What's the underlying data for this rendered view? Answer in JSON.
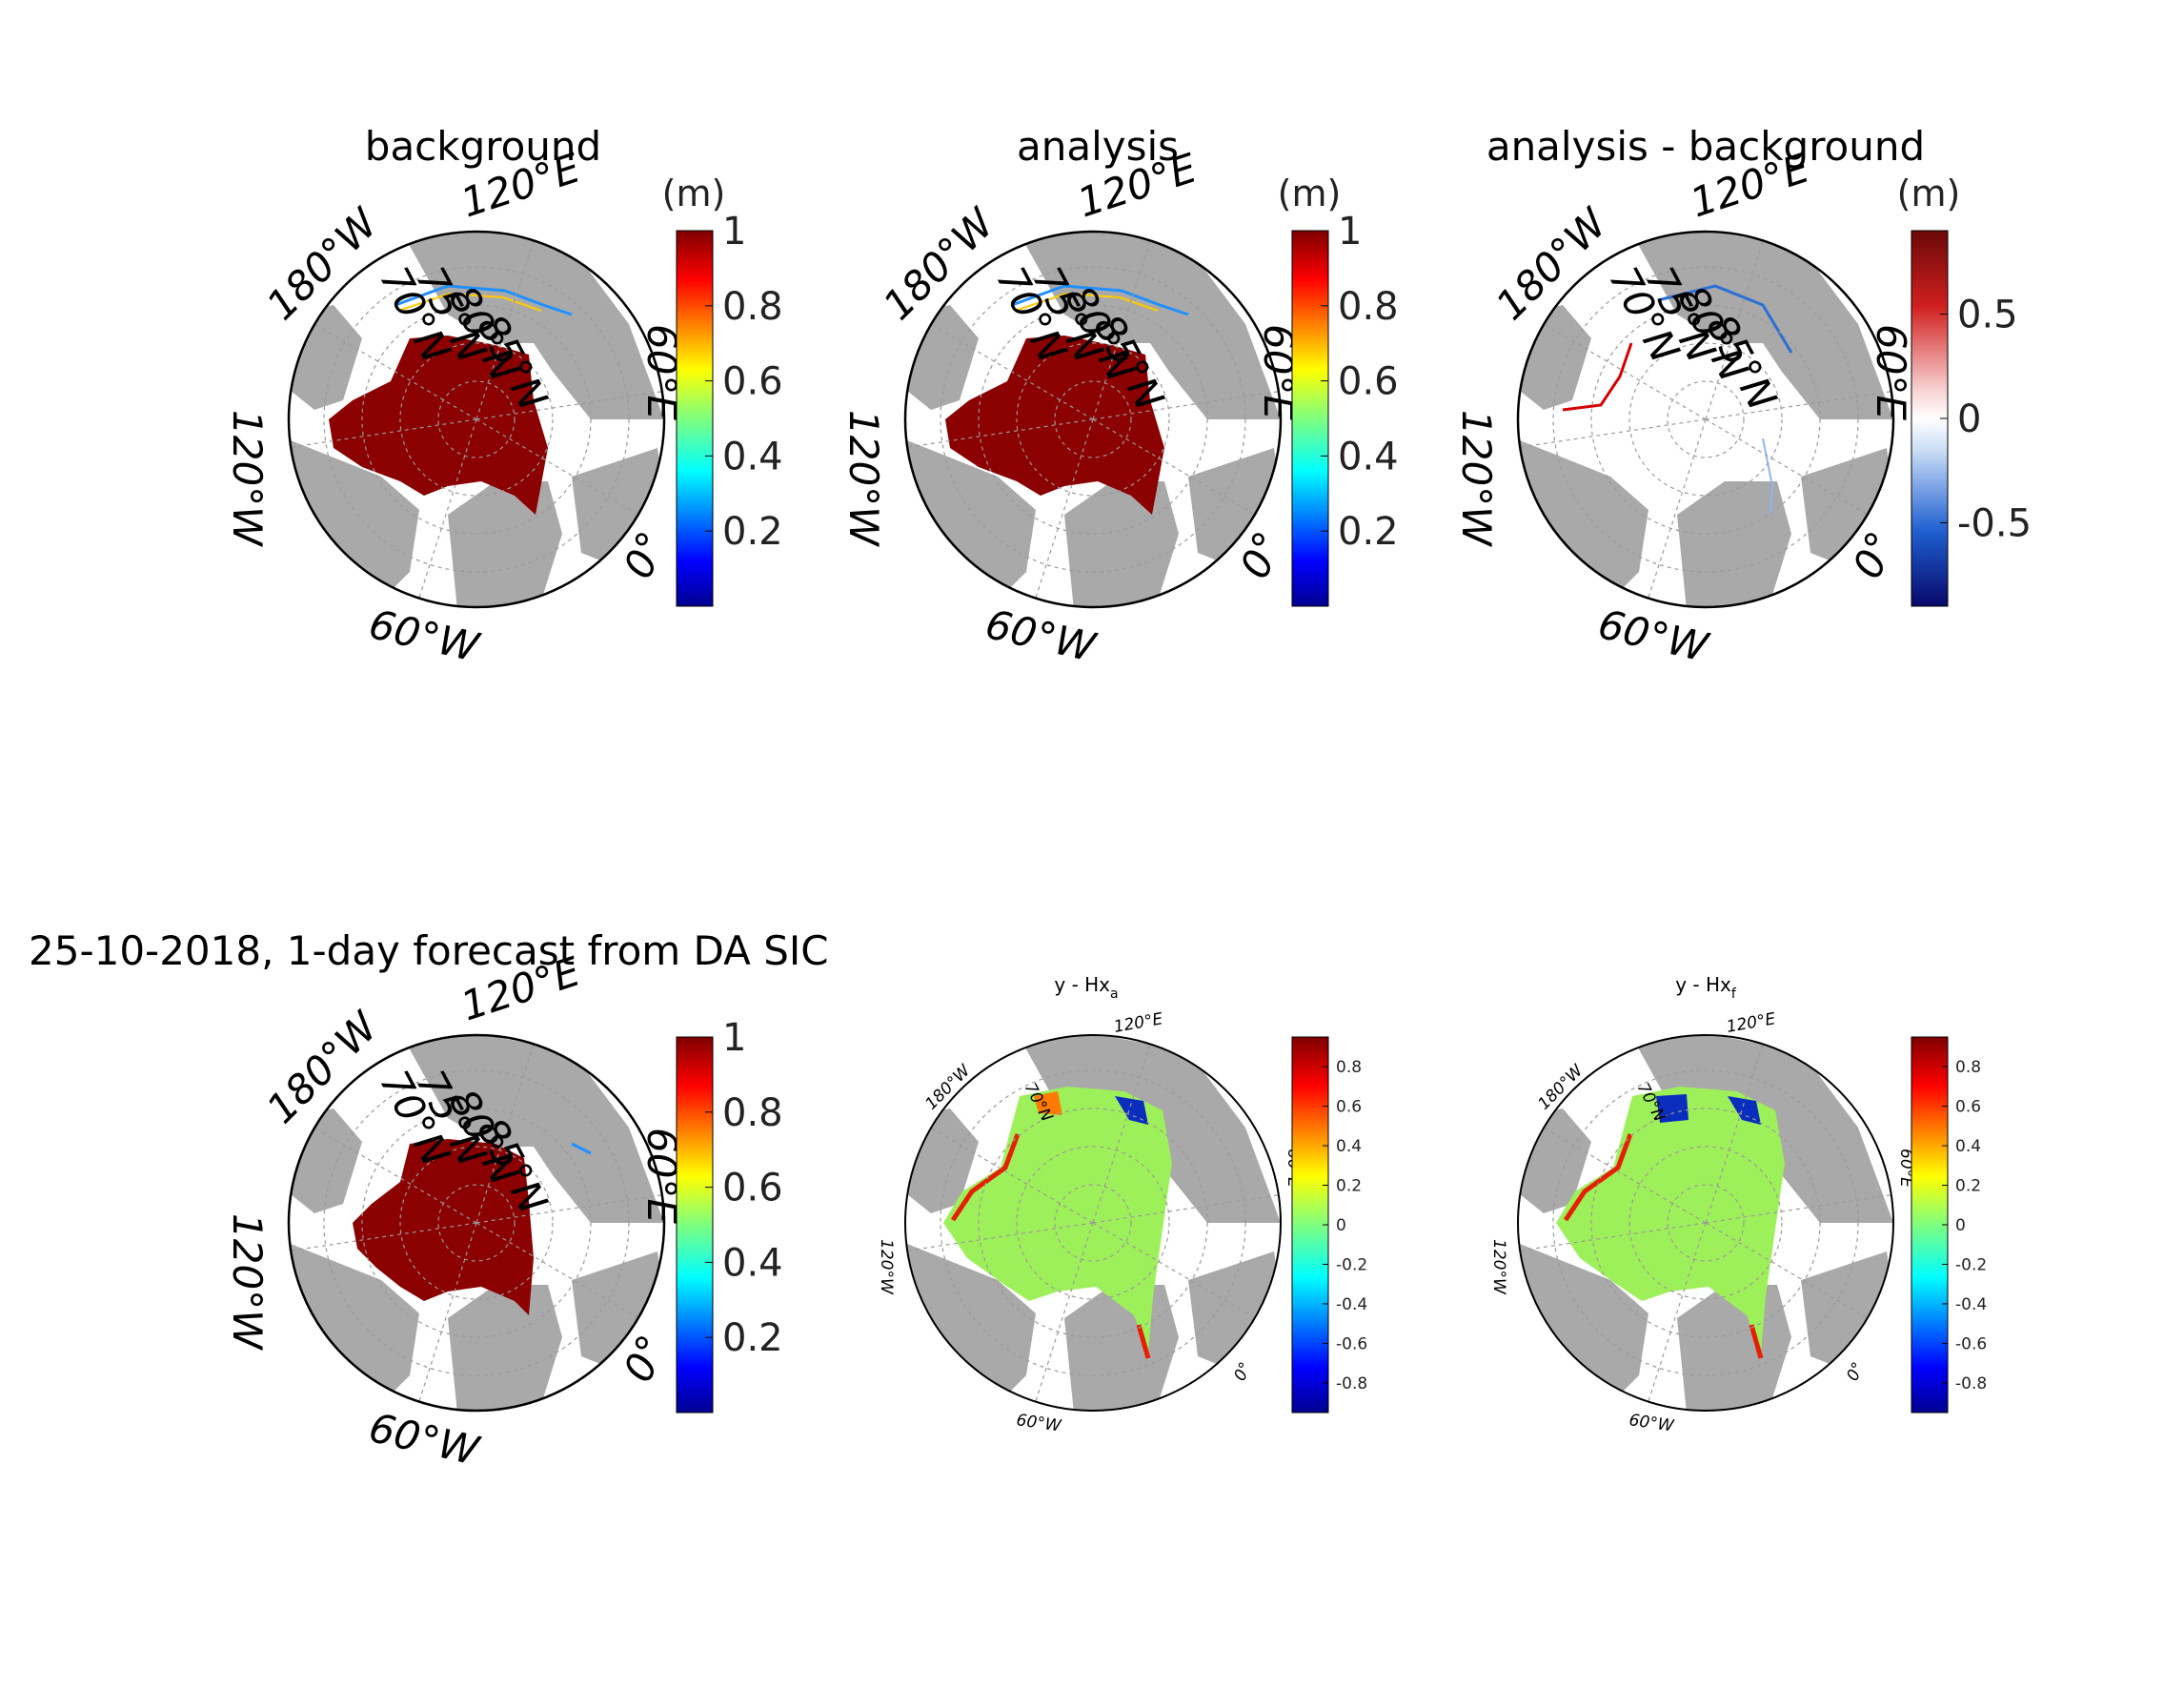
{
  "figure": {
    "suptitle": "25-10-2018, 1-day forecast from DA SIC"
  },
  "colors": {
    "land": "#a9a9a9",
    "ocean": "#ffffff",
    "ice_max": "#8b0000",
    "ice_edge_low": "#0000c8",
    "increase": "#d40000",
    "decrease": "#2a6fd6",
    "innovation_neutral": "#9ef05a"
  },
  "chart_data": [
    {
      "type": "heatmap",
      "projection": "polar stereographic (north pole)",
      "title": "background",
      "lon_labels": [
        "120°E",
        "180°W",
        "120°W",
        "60°W",
        "0°",
        "60°E"
      ],
      "lat_labels": [
        "70°N",
        "75°N",
        "80°N",
        "85°N"
      ],
      "colorbar": {
        "unit": "(m)",
        "ticks": [
          "1",
          "0.8",
          "0.6",
          "0.4",
          "0.2"
        ],
        "range": [
          0,
          1
        ],
        "colormap": "jet"
      }
    },
    {
      "type": "heatmap",
      "projection": "polar stereographic (north pole)",
      "title": "analysis",
      "lon_labels": [
        "120°E",
        "180°W",
        "120°W",
        "60°W",
        "0°",
        "60°E"
      ],
      "lat_labels": [
        "70°N",
        "75°N",
        "80°N",
        "85°N"
      ],
      "colorbar": {
        "unit": "(m)",
        "ticks": [
          "1",
          "0.8",
          "0.6",
          "0.4",
          "0.2"
        ],
        "range": [
          0,
          1
        ],
        "colormap": "jet"
      }
    },
    {
      "type": "heatmap",
      "projection": "polar stereographic (north pole)",
      "title": "analysis - background",
      "lon_labels": [
        "120°E",
        "180°W",
        "120°W",
        "60°W",
        "0°",
        "60°E"
      ],
      "lat_labels": [
        "70°N",
        "75°N",
        "80°N",
        "85°N"
      ],
      "colorbar": {
        "unit": "(m)",
        "ticks": [
          "0.5",
          "0",
          "-0.5"
        ],
        "range": [
          -0.9,
          0.9
        ],
        "colormap": "diverging blue-white-red"
      }
    },
    {
      "type": "heatmap",
      "projection": "polar stereographic (north pole)",
      "title": "",
      "lon_labels": [
        "120°E",
        "180°W",
        "120°W",
        "60°W",
        "0°",
        "60°E"
      ],
      "lat_labels": [
        "70°N",
        "75°N",
        "80°N",
        "85°N"
      ],
      "colorbar": {
        "unit": "",
        "ticks": [
          "1",
          "0.8",
          "0.6",
          "0.4",
          "0.2"
        ],
        "range": [
          0,
          1
        ],
        "colormap": "jet"
      }
    },
    {
      "type": "heatmap",
      "projection": "polar stereographic (north pole)",
      "title": "y - Hx",
      "title_subscript": "a",
      "lon_labels": [
        "120°E",
        "180°W",
        "120°W",
        "60°W",
        "0°",
        "60°E"
      ],
      "lat_labels": [
        "70°N"
      ],
      "colorbar": {
        "unit": "",
        "ticks": [
          "0.8",
          "0.6",
          "0.4",
          "0.2",
          "0",
          "-0.2",
          "-0.4",
          "-0.6",
          "-0.8"
        ],
        "range": [
          -0.95,
          0.95
        ],
        "colormap": "jet"
      }
    },
    {
      "type": "heatmap",
      "projection": "polar stereographic (north pole)",
      "title": "y - Hx",
      "title_subscript": "f",
      "lon_labels": [
        "120°E",
        "180°W",
        "120°W",
        "60°W",
        "0°",
        "60°E"
      ],
      "lat_labels": [
        "70°N"
      ],
      "colorbar": {
        "unit": "",
        "ticks": [
          "0.8",
          "0.6",
          "0.4",
          "0.2",
          "0",
          "-0.2",
          "-0.4",
          "-0.6",
          "-0.8"
        ],
        "range": [
          -0.95,
          0.95
        ],
        "colormap": "jet"
      }
    }
  ]
}
